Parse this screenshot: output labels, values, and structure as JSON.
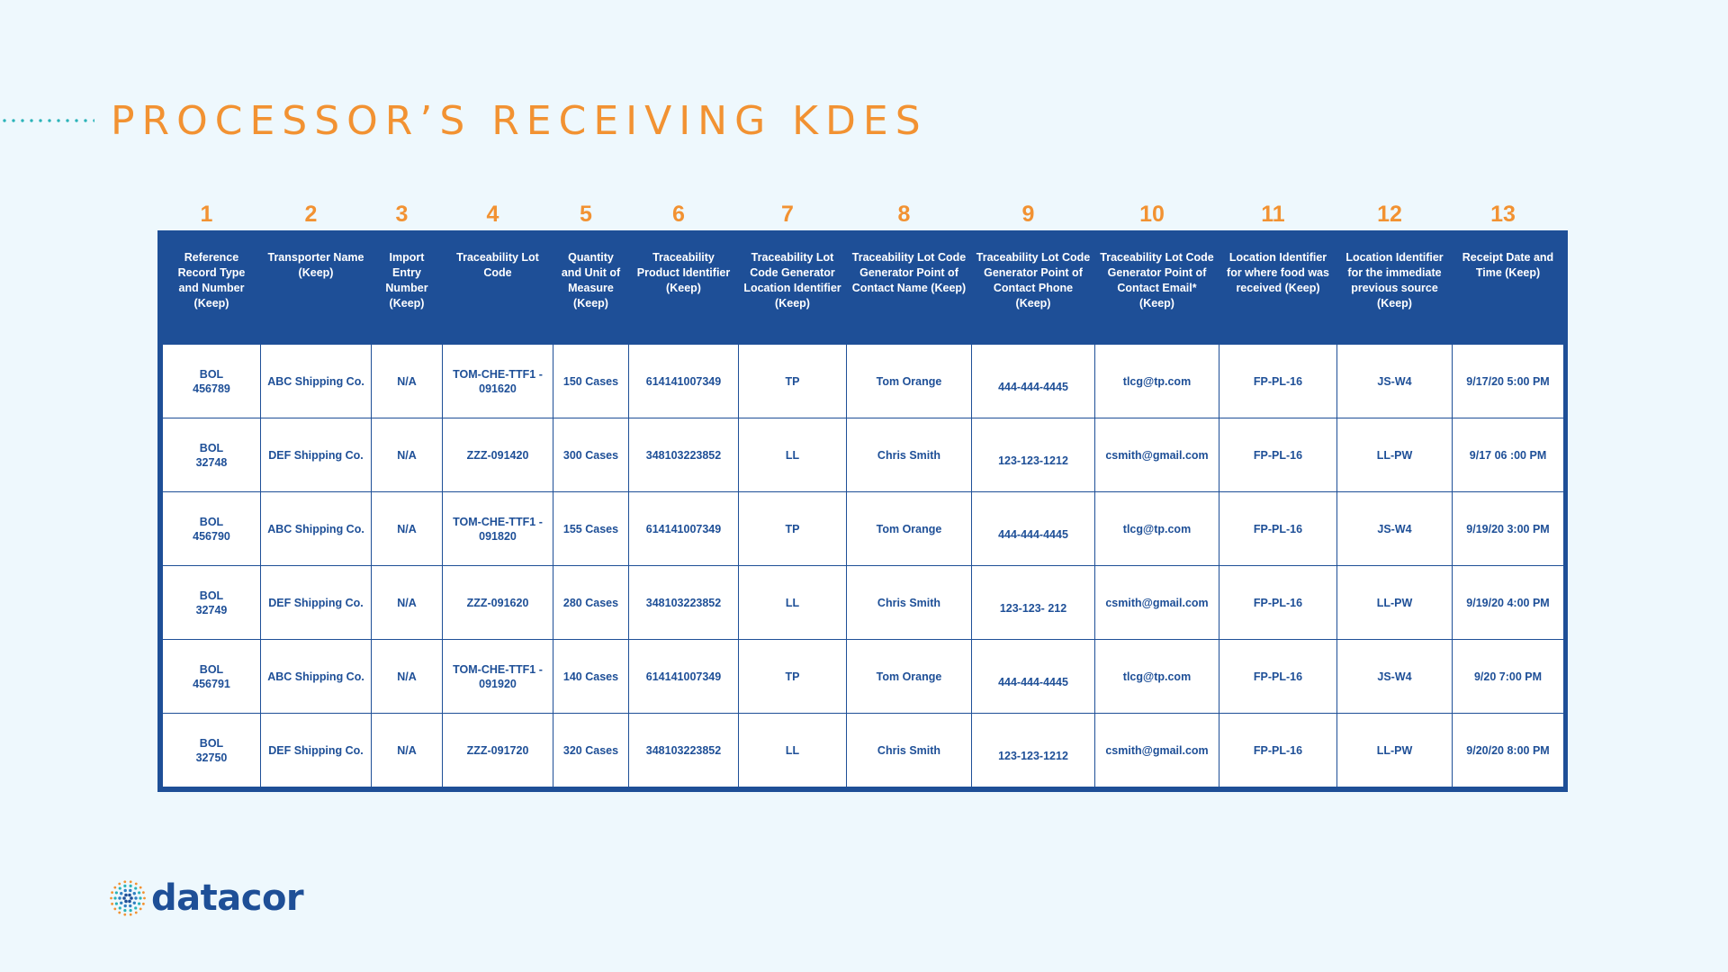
{
  "title": "PROCESSOR’S RECEIVING KDES",
  "column_numbers": [
    "1",
    "2",
    "3",
    "4",
    "5",
    "6",
    "7",
    "8",
    "9",
    "10",
    "11",
    "12",
    "13"
  ],
  "headers": [
    "Reference Record Type and Number (Keep)",
    "Transporter Name (Keep)",
    "Import Entry Number (Keep)",
    "Traceability Lot Code",
    "Quantity and Unit of Measure (Keep)",
    "Traceability Product Identifier (Keep)",
    "Traceability Lot Code Generator Location Identifier (Keep)",
    "Traceability Lot Code Generator Point of Contact Name (Keep)",
    "Traceability Lot Code Generator Point of Contact Phone (Keep)",
    "Traceability Lot Code Generator Point of Contact Email* (Keep)",
    "Location Identifier for where food was received (Keep)",
    "Location Identifier for the immediate previous source (Keep)",
    "Receipt Date and Time (Keep)"
  ],
  "rows": [
    [
      "BOL\n456789",
      "ABC Shipping Co.",
      "N/A",
      "TOM-CHE-TTF1 -\n091620",
      "150 Cases",
      "614141007349",
      "TP",
      "Tom Orange",
      "444-444-4445",
      "tlcg@tp.com",
      "FP-PL-16",
      "JS-W4",
      "9/17/20 5:00 PM"
    ],
    [
      "BOL\n32748",
      "DEF Shipping Co.",
      "N/A",
      "ZZZ-091420",
      "300 Cases",
      "348103223852",
      "LL",
      "Chris Smith",
      "123-123-1212",
      "csmith@gmail.com",
      "FP-PL-16",
      "LL-PW",
      "9/17 06 :00 PM"
    ],
    [
      "BOL\n456790",
      "ABC Shipping Co.",
      "N/A",
      "TOM-CHE-TTF1 -\n091820",
      "155 Cases",
      "614141007349",
      "TP",
      "Tom Orange",
      "444-444-4445",
      "tlcg@tp.com",
      "FP-PL-16",
      "JS-W4",
      "9/19/20 3:00 PM"
    ],
    [
      "BOL\n32749",
      "DEF Shipping Co.",
      "N/A",
      "ZZZ-091620",
      "280 Cases",
      "348103223852",
      "LL",
      "Chris Smith",
      "123-123- 212",
      "csmith@gmail.com",
      "FP-PL-16",
      "LL-PW",
      "9/19/20 4:00 PM"
    ],
    [
      "BOL\n456791",
      "ABC Shipping Co.",
      "N/A",
      "TOM-CHE-TTF1 -\n091920",
      "140 Cases",
      "614141007349",
      "TP",
      "Tom Orange",
      "444-444-4445",
      "tlcg@tp.com",
      "FP-PL-16",
      "JS-W4",
      "9/20 7:00 PM"
    ],
    [
      "BOL\n32750",
      "DEF Shipping Co.",
      "N/A",
      "ZZZ-091720",
      "320 Cases",
      "348103223852",
      "LL",
      "Chris Smith",
      "123-123-1212",
      "csmith@gmail.com",
      "FP-PL-16",
      "LL-PW",
      "9/20/20 8:00 PM"
    ]
  ],
  "logo": {
    "text": "datacor",
    "icon": "datacor-dot-burst-icon"
  },
  "colors": {
    "accent_orange": "#f29232",
    "table_blue": "#1e4f97",
    "background": "#eef8fd",
    "dots_teal": "#2bb3b8"
  }
}
